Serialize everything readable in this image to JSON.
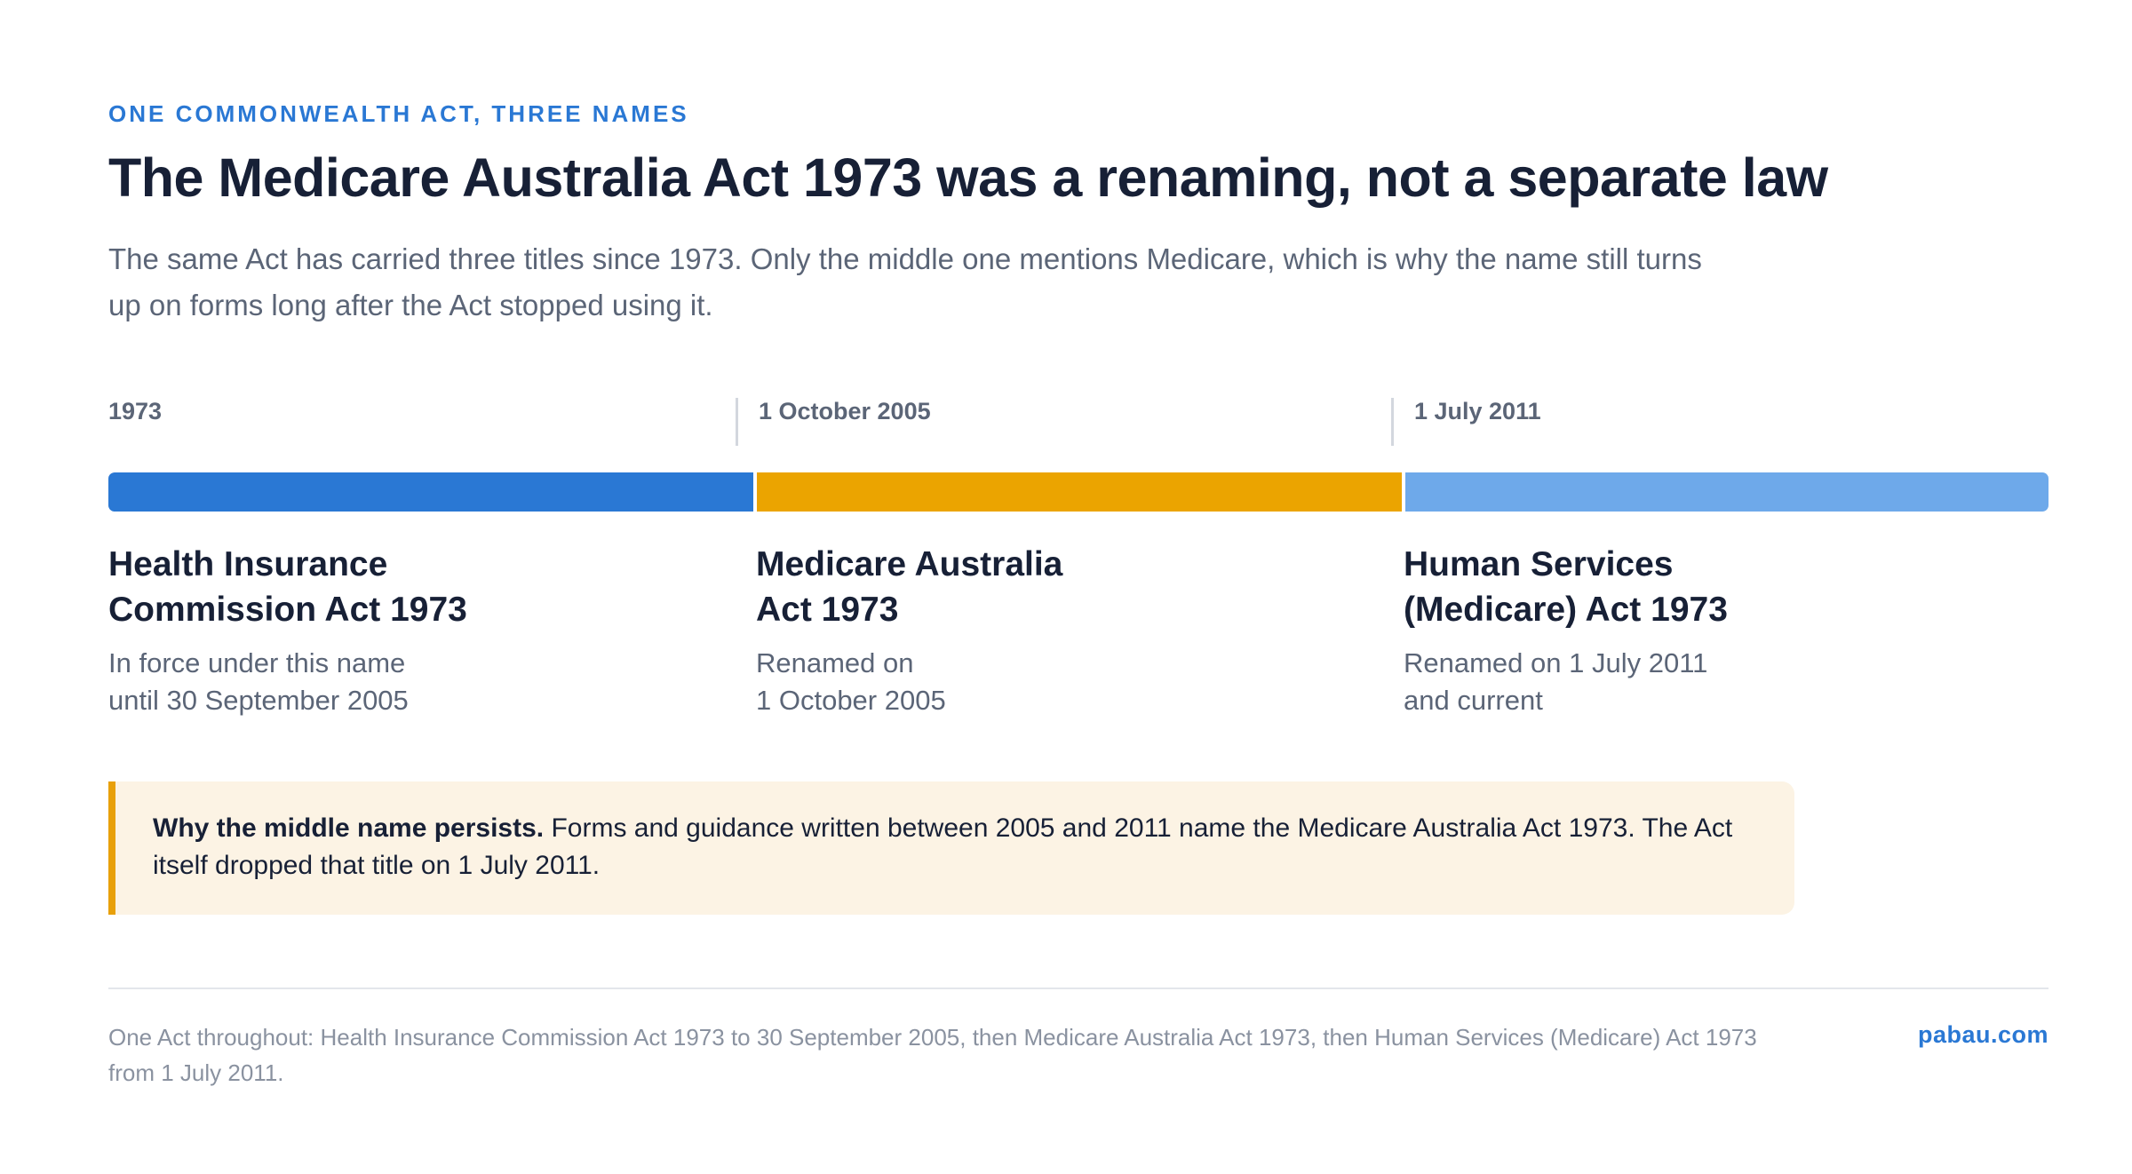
{
  "eyebrow": "ONE COMMONWEALTH ACT, THREE NAMES",
  "title": "The Medicare Australia Act 1973 was a renaming, not a separate law",
  "subtitle": "The same Act has carried three titles since 1973. Only the middle one mentions Medicare, which is why the name still turns up on forms long after the Act stopped using it.",
  "timeline": {
    "dates": [
      "1973",
      "1 October 2005",
      "1 July 2011"
    ],
    "periods": [
      {
        "name_line1": "Health Insurance",
        "name_line2": "Commission Act 1973",
        "note_line1": "In force under this name",
        "note_line2": "until 30 September 2005",
        "color": "#2a78d4"
      },
      {
        "name_line1": "Medicare Australia",
        "name_line2": "Act 1973",
        "note_line1": "Renamed on",
        "note_line2": "1 October 2005",
        "color": "#eba400"
      },
      {
        "name_line1": "Human Services",
        "name_line2": "(Medicare) Act 1973",
        "note_line1": "Renamed on 1 July 2011",
        "note_line2": "and current",
        "color": "#6ea9ea"
      }
    ]
  },
  "callout": {
    "lead": "Why the middle name persists.",
    "body": " Forms and guidance written between 2005 and 2011 name the Medicare Australia Act 1973. The Act itself dropped that title on 1 July 2011."
  },
  "footer": {
    "note": "One Act throughout: Health Insurance Commission Act 1973 to 30 September 2005, then Medicare Australia Act 1973, then Human Services (Medicare) Act 1973 from 1 July 2011.",
    "brand": "pabau.com"
  }
}
